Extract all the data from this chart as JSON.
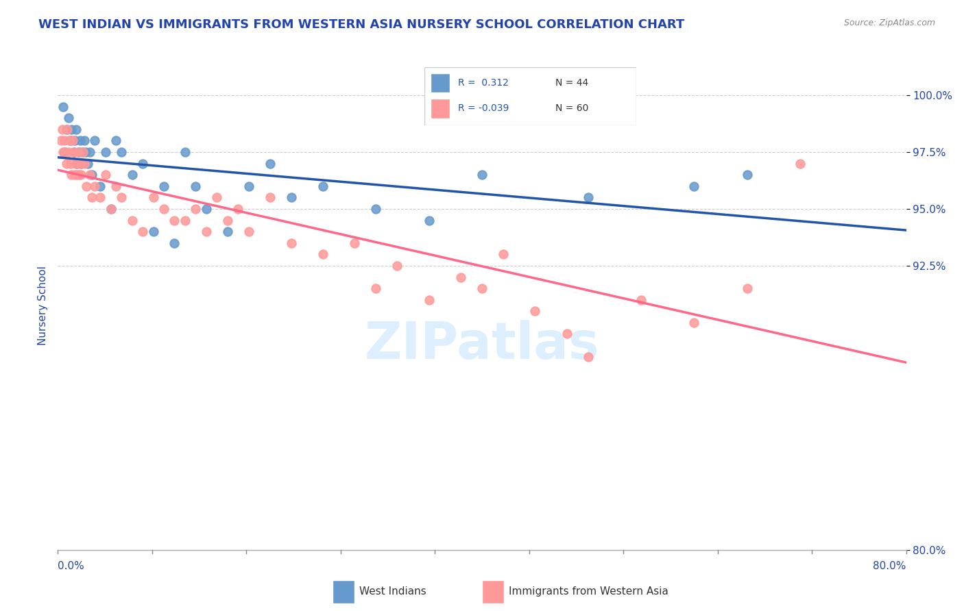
{
  "title": "WEST INDIAN VS IMMIGRANTS FROM WESTERN ASIA NURSERY SCHOOL CORRELATION CHART",
  "source": "Source: ZipAtlas.com",
  "ylabel": "Nursery School",
  "ytick_values": [
    80.0,
    92.5,
    95.0,
    97.5,
    100.0
  ],
  "xlim": [
    0.0,
    80.0
  ],
  "ylim": [
    80.0,
    101.5
  ],
  "blue_R": 0.312,
  "blue_N": 44,
  "pink_R": -0.039,
  "pink_N": 60,
  "blue_color": "#6699CC",
  "pink_color": "#FF9999",
  "blue_line_color": "#2255AA",
  "pink_line_color": "#FF6688",
  "watermark_color": "#DDEEFF",
  "background_color": "#FFFFFF",
  "grid_color": "#CCCCCC",
  "title_color": "#2244AA",
  "axis_label_color": "#2244AA",
  "legend_R_color": "#2255AA",
  "blue_x": [
    0.5,
    0.6,
    0.8,
    1.0,
    1.2,
    1.3,
    1.5,
    1.6,
    1.7,
    1.8,
    2.0,
    2.1,
    2.2,
    2.3,
    2.5,
    2.6,
    2.8,
    3.0,
    3.2,
    3.5,
    4.0,
    4.5,
    5.0,
    5.5,
    6.0,
    7.0,
    8.0,
    9.0,
    10.0,
    11.0,
    12.0,
    13.0,
    14.0,
    16.0,
    18.0,
    20.0,
    22.0,
    25.0,
    30.0,
    35.0,
    40.0,
    50.0,
    60.0,
    65.0
  ],
  "blue_y": [
    99.5,
    97.5,
    98.5,
    99.0,
    98.0,
    98.5,
    97.5,
    98.0,
    98.5,
    97.0,
    97.5,
    98.0,
    97.0,
    97.5,
    98.0,
    97.5,
    97.0,
    97.5,
    96.5,
    98.0,
    96.0,
    97.5,
    95.0,
    98.0,
    97.5,
    96.5,
    97.0,
    94.0,
    96.0,
    93.5,
    97.5,
    96.0,
    95.0,
    94.0,
    96.0,
    97.0,
    95.5,
    96.0,
    95.0,
    94.5,
    96.5,
    95.5,
    96.0,
    96.5
  ],
  "pink_x": [
    0.3,
    0.4,
    0.5,
    0.6,
    0.7,
    0.8,
    0.9,
    1.0,
    1.1,
    1.2,
    1.3,
    1.4,
    1.5,
    1.6,
    1.7,
    1.8,
    1.9,
    2.0,
    2.1,
    2.2,
    2.4,
    2.5,
    2.7,
    3.0,
    3.2,
    3.5,
    4.0,
    4.5,
    5.0,
    5.5,
    6.0,
    7.0,
    8.0,
    9.0,
    10.0,
    11.0,
    12.0,
    13.0,
    14.0,
    15.0,
    16.0,
    17.0,
    18.0,
    20.0,
    22.0,
    25.0,
    28.0,
    30.0,
    32.0,
    35.0,
    38.0,
    40.0,
    42.0,
    45.0,
    48.0,
    50.0,
    55.0,
    60.0,
    65.0,
    70.0
  ],
  "pink_y": [
    98.0,
    98.5,
    97.5,
    98.0,
    97.5,
    97.0,
    98.5,
    97.5,
    98.0,
    97.0,
    96.5,
    98.0,
    97.5,
    96.5,
    97.0,
    96.5,
    97.5,
    96.5,
    97.0,
    96.5,
    97.5,
    97.0,
    96.0,
    96.5,
    95.5,
    96.0,
    95.5,
    96.5,
    95.0,
    96.0,
    95.5,
    94.5,
    94.0,
    95.5,
    95.0,
    94.5,
    94.5,
    95.0,
    94.0,
    95.5,
    94.5,
    95.0,
    94.0,
    95.5,
    93.5,
    93.0,
    93.5,
    91.5,
    92.5,
    91.0,
    92.0,
    91.5,
    93.0,
    90.5,
    89.5,
    88.5,
    91.0,
    90.0,
    91.5,
    97.0
  ]
}
